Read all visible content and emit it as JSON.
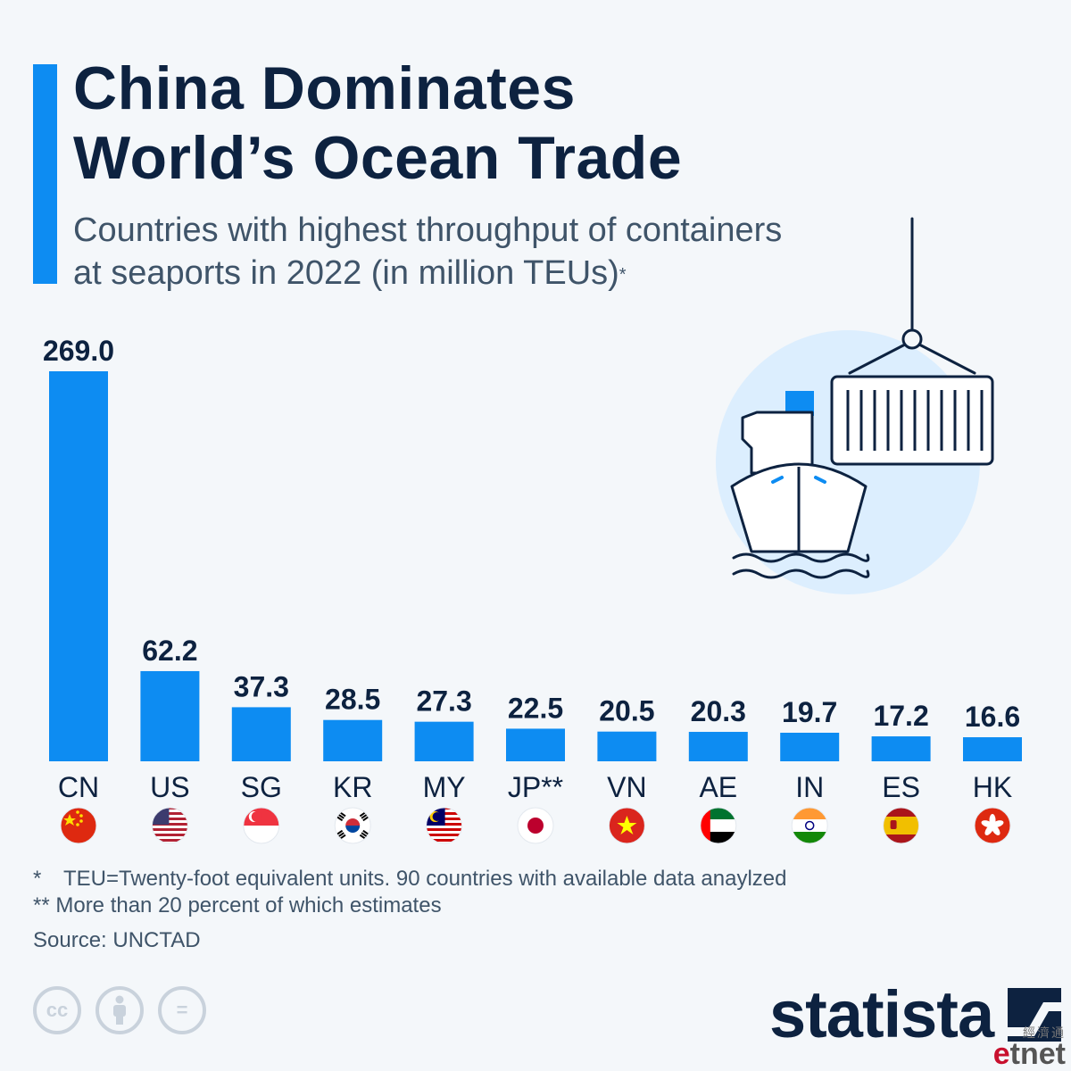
{
  "title_line1": "China Dominates",
  "title_line2": "World’s Ocean Trade",
  "subtitle_line1": "Countries with highest throughput of containers",
  "subtitle_line2": "at seaports in 2022 (in million TEUs)",
  "subtitle_mark": "*",
  "chart_data": {
    "type": "bar",
    "title": "China Dominates World’s Ocean Trade",
    "subtitle": "Countries with highest throughput of containers at seaports in 2022 (in million TEUs)*",
    "categories": [
      "CN",
      "US",
      "SG",
      "KR",
      "MY",
      "JP**",
      "VN",
      "AE",
      "IN",
      "ES",
      "HK"
    ],
    "values": [
      269.0,
      62.2,
      37.3,
      28.5,
      27.3,
      22.5,
      20.5,
      20.3,
      19.7,
      17.2,
      16.6
    ],
    "value_labels": [
      "269.0",
      "62.2",
      "37.3",
      "28.5",
      "27.3",
      "22.5",
      "20.5",
      "20.3",
      "19.7",
      "17.2",
      "16.6"
    ],
    "flags": [
      "china",
      "usa",
      "singapore",
      "south-korea",
      "malaysia",
      "japan",
      "vietnam",
      "uae",
      "india",
      "spain",
      "hong-kong"
    ],
    "xlabel": "",
    "ylabel": "",
    "ylim": [
      0,
      269.0
    ],
    "grid": false,
    "bar_color": "#0d8cf2"
  },
  "footnote_1_mark": "*",
  "footnote_1_text": "TEU=Twenty-foot equivalent units. 90 countries with available data anaylzed",
  "footnote_2": "** More than 20 percent of which estimates",
  "source": "Source: UNCTAD",
  "license_icons": [
    "cc-icon",
    "attribution-icon",
    "no-derivatives-icon"
  ],
  "license_cc": "cc",
  "license_nd": "=",
  "brand": "statista",
  "watermark_cn": "經濟通",
  "watermark_e": "e",
  "watermark_rest": "tnet",
  "colors": {
    "accent": "#0d8cf2",
    "title": "#0d2240",
    "text": "#3f5469",
    "illustration_bg": "#dceefe"
  }
}
